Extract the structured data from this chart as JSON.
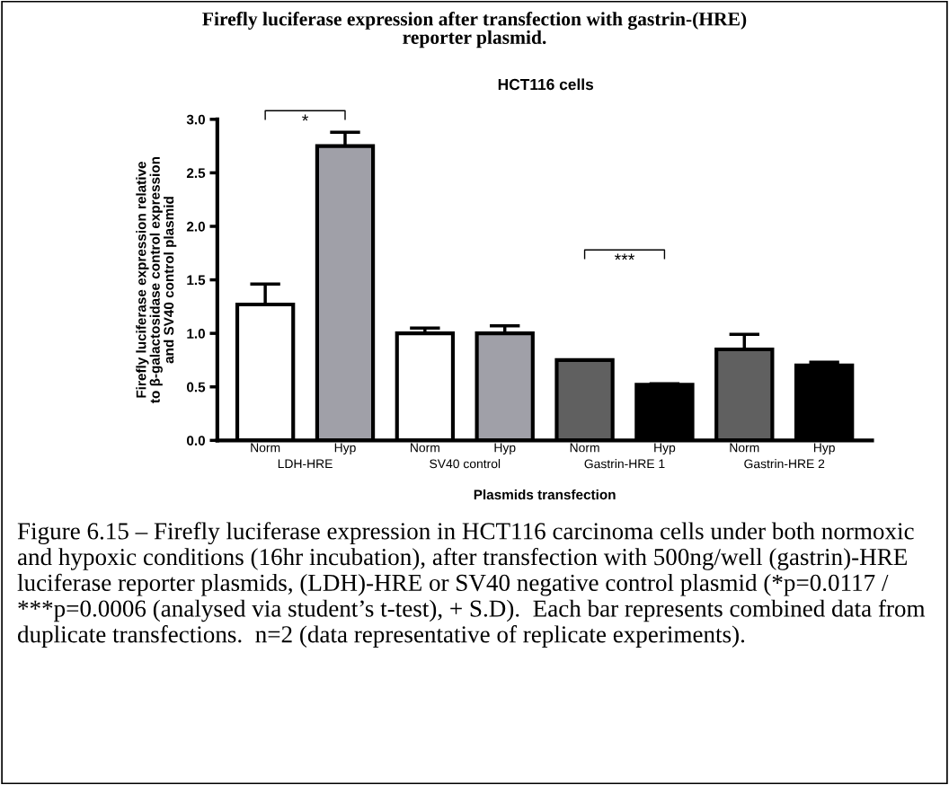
{
  "chart_data": {
    "type": "bar",
    "title": "Firefly luciferase expression after transfection with gastrin-(HRE)\nreporter plasmid.",
    "subtitle": "HCT116 cells",
    "xlabel": "Plasmids transfection",
    "ylabel": "Firefly luciferase expression relative\nto β-galactosidase control expression\nand SV40 control plasmid",
    "categories": [
      "Norm",
      "Hyp",
      "Norm",
      "Hyp",
      "Norm",
      "Hyp",
      "Norm",
      "Hyp"
    ],
    "values": [
      1.27,
      2.75,
      1.0,
      1.0,
      0.75,
      0.52,
      0.85,
      0.7
    ],
    "colors": [
      "#ffffff",
      "#a0a0a8",
      "#ffffff",
      "#a0a0a8",
      "#606060",
      "#000000",
      "#606060",
      "#000000"
    ],
    "errors": [
      [
        1.27,
        1.46
      ],
      [
        2.75,
        2.88
      ],
      [
        1.0,
        1.05
      ],
      [
        1.0,
        1.07
      ],
      [
        0.75,
        0.75
      ],
      [
        0.52,
        0.53
      ],
      [
        0.85,
        0.99
      ],
      [
        0.7,
        0.73
      ]
    ],
    "ylim": [
      0,
      3.0
    ],
    "yticks": [
      {
        "value": 0,
        "label": "0.0"
      },
      {
        "value": 0.5,
        "label": "0.5"
      },
      {
        "value": 1.0,
        "label": "1.0"
      },
      {
        "value": 1.5,
        "label": "1.5"
      },
      {
        "value": 2.0,
        "label": "2.0"
      },
      {
        "value": 2.5,
        "label": "2.5"
      },
      {
        "value": 3.0,
        "label": "3.0"
      }
    ],
    "grid": false,
    "legend": false,
    "annotations": [
      "LDH-HRE",
      "SV40 control",
      "Gastrin-HRE 1",
      "Gastrin-HRE 2",
      "*",
      "***",
      "Figure 6.15 – Firefly luciferase expression in HCT116 carcinoma cells under both normoxic and hypoxic conditions (16hr incubation), after transfection with 500ng/well (gastrin)-HRE luciferase reporter plasmids, (LDH)-HRE or SV40 negative control plasmid (*p=0.0117 / ***p=0.0006 (analysed via student’s t-test), + S.D).  Each bar represents combined data from duplicate transfections.  n=2 (data representative of replicate experiments)."
    ]
  }
}
